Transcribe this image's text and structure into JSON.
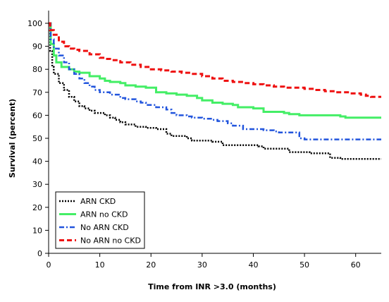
{
  "chart_data": {
    "type": "line",
    "title": "",
    "xlabel": "Time from INR >3.0 (months)",
    "ylabel": "Survival (percent)",
    "xlim": [
      0,
      65
    ],
    "ylim": [
      0,
      100
    ],
    "x_ticks": [
      0,
      10,
      20,
      30,
      40,
      50,
      60
    ],
    "y_ticks": [
      0,
      10,
      20,
      30,
      40,
      50,
      60,
      70,
      80,
      90,
      100
    ],
    "grid": false,
    "legend_position": "bottom-left",
    "series": [
      {
        "name": "ARN CKD",
        "color": "#000000",
        "style": "dotted",
        "step": true,
        "points": [
          [
            0,
            100
          ],
          [
            0.3,
            88
          ],
          [
            0.7,
            81
          ],
          [
            1,
            78
          ],
          [
            2,
            74
          ],
          [
            3,
            71
          ],
          [
            4,
            68
          ],
          [
            5,
            66
          ],
          [
            6,
            64
          ],
          [
            7,
            63
          ],
          [
            8,
            62
          ],
          [
            9,
            61
          ],
          [
            10,
            61
          ],
          [
            11,
            60
          ],
          [
            12,
            59
          ],
          [
            13,
            58
          ],
          [
            14,
            57
          ],
          [
            15,
            56
          ],
          [
            17,
            55
          ],
          [
            19,
            54.5
          ],
          [
            21,
            54
          ],
          [
            23,
            52
          ],
          [
            24,
            51
          ],
          [
            27,
            50
          ],
          [
            28,
            49
          ],
          [
            32,
            48.5
          ],
          [
            34,
            47
          ],
          [
            41,
            46.5
          ],
          [
            42,
            45.5
          ],
          [
            47,
            44
          ],
          [
            51,
            43.5
          ],
          [
            55,
            41.5
          ],
          [
            57,
            41
          ],
          [
            65,
            41
          ]
        ]
      },
      {
        "name": "ARN no CKD",
        "color": "#44ee66",
        "style": "solid",
        "step": true,
        "points": [
          [
            0,
            100
          ],
          [
            0.4,
            91
          ],
          [
            1,
            86
          ],
          [
            1.5,
            83
          ],
          [
            2.5,
            81
          ],
          [
            4,
            80
          ],
          [
            5,
            79
          ],
          [
            6,
            78.5
          ],
          [
            8,
            77
          ],
          [
            10,
            76
          ],
          [
            11,
            75
          ],
          [
            12,
            74.5
          ],
          [
            14,
            74
          ],
          [
            15,
            73
          ],
          [
            17,
            72.5
          ],
          [
            19,
            72
          ],
          [
            21,
            70
          ],
          [
            23,
            69.5
          ],
          [
            25,
            69
          ],
          [
            27,
            68.5
          ],
          [
            29,
            67.5
          ],
          [
            30,
            66.5
          ],
          [
            32,
            65.5
          ],
          [
            34,
            65
          ],
          [
            36,
            64.5
          ],
          [
            37,
            63.5
          ],
          [
            40,
            63
          ],
          [
            42,
            61.5
          ],
          [
            46,
            61
          ],
          [
            47,
            60.5
          ],
          [
            49,
            60
          ],
          [
            57,
            59.5
          ],
          [
            58,
            59
          ],
          [
            65,
            59
          ]
        ]
      },
      {
        "name": "No ARN CKD",
        "color": "#2255dd",
        "style": "dashdot",
        "step": true,
        "points": [
          [
            0,
            100
          ],
          [
            0.4,
            93
          ],
          [
            1,
            89
          ],
          [
            2,
            86
          ],
          [
            3,
            83
          ],
          [
            4,
            80
          ],
          [
            5,
            78
          ],
          [
            6,
            76
          ],
          [
            7,
            74
          ],
          [
            8,
            72.5
          ],
          [
            9,
            71
          ],
          [
            10,
            70
          ],
          [
            12,
            69
          ],
          [
            14,
            67.5
          ],
          [
            15,
            67
          ],
          [
            17,
            66
          ],
          [
            18,
            65.5
          ],
          [
            19,
            64.5
          ],
          [
            21,
            63.5
          ],
          [
            23,
            62.5
          ],
          [
            24,
            61
          ],
          [
            25,
            60
          ],
          [
            27,
            59.5
          ],
          [
            28,
            59
          ],
          [
            30,
            58.5
          ],
          [
            32,
            58
          ],
          [
            33,
            57.5
          ],
          [
            35,
            56.5
          ],
          [
            36,
            55.5
          ],
          [
            38,
            54
          ],
          [
            42,
            53.5
          ],
          [
            44,
            53
          ],
          [
            45,
            52.5
          ],
          [
            49,
            50
          ],
          [
            50,
            49.5
          ],
          [
            65,
            49.5
          ]
        ]
      },
      {
        "name": "No ARN no CKD",
        "color": "#ee1111",
        "style": "dashed",
        "step": true,
        "points": [
          [
            0,
            100
          ],
          [
            0.3,
            97
          ],
          [
            1,
            95
          ],
          [
            2,
            92
          ],
          [
            3,
            90
          ],
          [
            4,
            89
          ],
          [
            5,
            88.5
          ],
          [
            6,
            88
          ],
          [
            8,
            86.5
          ],
          [
            10,
            85
          ],
          [
            11,
            84.5
          ],
          [
            12,
            84
          ],
          [
            14,
            83
          ],
          [
            16,
            82
          ],
          [
            18,
            81
          ],
          [
            20,
            80
          ],
          [
            22,
            79.5
          ],
          [
            24,
            79
          ],
          [
            26,
            78.5
          ],
          [
            28,
            78
          ],
          [
            30,
            77
          ],
          [
            32,
            76
          ],
          [
            34,
            75
          ],
          [
            36,
            74.5
          ],
          [
            38,
            74
          ],
          [
            40,
            73.5
          ],
          [
            42,
            73
          ],
          [
            44,
            72.5
          ],
          [
            46,
            72
          ],
          [
            50,
            71.5
          ],
          [
            52,
            71
          ],
          [
            54,
            70.5
          ],
          [
            56,
            70
          ],
          [
            59,
            69.5
          ],
          [
            61,
            69
          ],
          [
            62,
            68.5
          ],
          [
            63,
            68
          ],
          [
            65,
            68
          ]
        ]
      }
    ]
  }
}
